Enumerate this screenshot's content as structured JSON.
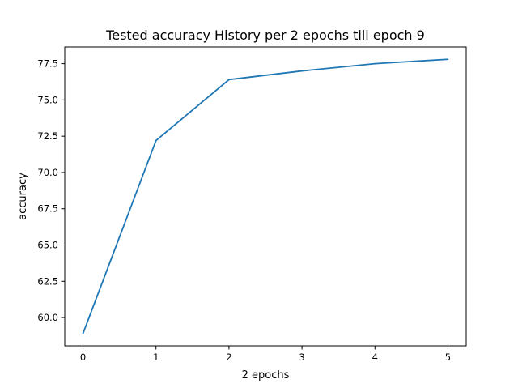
{
  "chart_data": {
    "type": "line",
    "title": "Tested accuracy History per 2 epochs till epoch 9",
    "xlabel": "2 epochs",
    "ylabel": "accuracy",
    "x": [
      0,
      1,
      2,
      3,
      4,
      5
    ],
    "series": [
      {
        "values": [
          58.9,
          72.2,
          76.4,
          77.0,
          77.5,
          77.8
        ],
        "color": "#1f77b4"
      }
    ],
    "xlim": [
      -0.25,
      5.25
    ],
    "ylim": [
      58.05,
      78.65
    ],
    "x_ticks": [
      0,
      1,
      2,
      3,
      4,
      5
    ],
    "x_tick_labels": [
      "0",
      "1",
      "2",
      "3",
      "4",
      "5"
    ],
    "y_ticks": [
      60.0,
      62.5,
      65.0,
      67.5,
      70.0,
      72.5,
      75.0,
      77.5
    ],
    "y_tick_labels": [
      "60.0",
      "62.5",
      "65.0",
      "67.5",
      "70.0",
      "72.5",
      "75.0",
      "77.5"
    ],
    "grid": false,
    "legend": "none"
  }
}
